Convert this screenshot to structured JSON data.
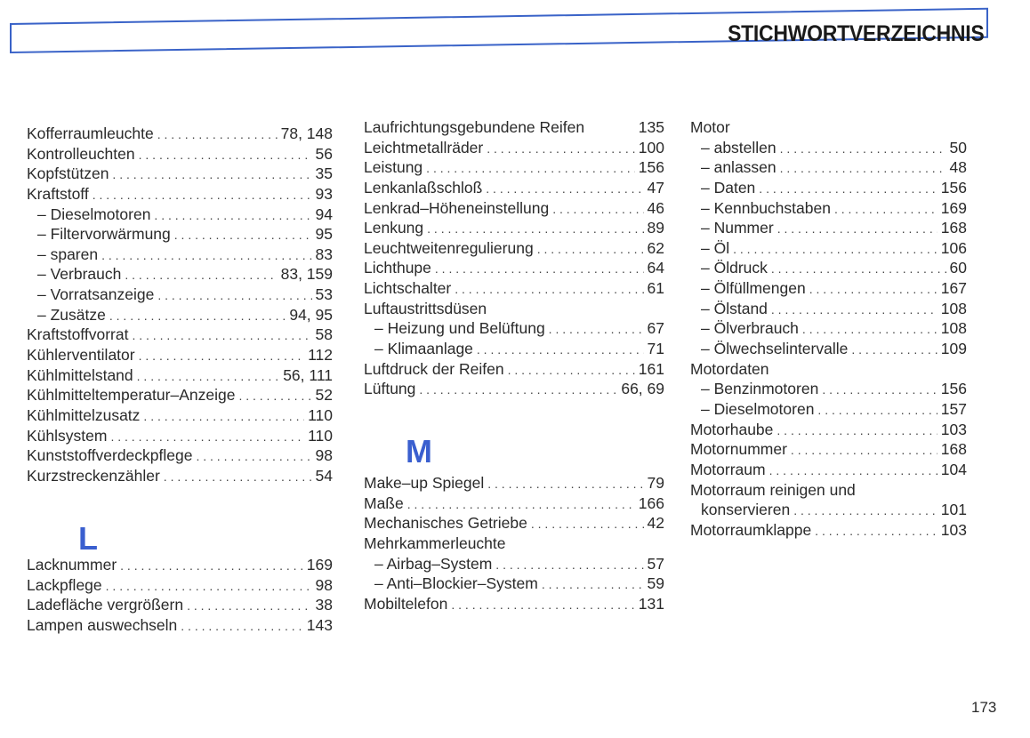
{
  "header": {
    "title": "STICHWORTVERZEICHNIS"
  },
  "accent_color": "#3a5fcf",
  "page_number": "173",
  "columns": [
    {
      "blocks": [
        {
          "entries": [
            {
              "text": "Kofferraumleuchte",
              "page": "78, 148"
            },
            {
              "text": "Kontrolleuchten",
              "page": "56"
            },
            {
              "text": "Kopfstützen",
              "page": "35"
            },
            {
              "text": "Kraftstoff",
              "page": "93"
            },
            {
              "text": "– Dieselmotoren",
              "page": "94",
              "sub": true
            },
            {
              "text": "– Filtervorwärmung",
              "page": "95",
              "sub": true
            },
            {
              "text": "– sparen",
              "page": "83",
              "sub": true
            },
            {
              "text": "– Verbrauch",
              "page": "83, 159",
              "sub": true
            },
            {
              "text": "– Vorratsanzeige",
              "page": "53",
              "sub": true
            },
            {
              "text": "– Zusätze",
              "page": "94, 95",
              "sub": true
            },
            {
              "text": "Kraftstoffvorrat",
              "page": "58"
            },
            {
              "text": "Kühlerventilator",
              "page": "112"
            },
            {
              "text": "Kühlmittelstand",
              "page": "56, 111"
            },
            {
              "text": "Kühlmitteltemperatur–Anzeige",
              "page": "52"
            },
            {
              "text": "Kühlmittelzusatz",
              "page": "110"
            },
            {
              "text": "Kühlsystem",
              "page": "110"
            },
            {
              "text": "Kunststoffverdeckpflege",
              "page": "98"
            },
            {
              "text": "Kurzstreckenzähler",
              "page": "54"
            }
          ]
        },
        {
          "letter": "L",
          "entries": [
            {
              "text": "Lacknummer",
              "page": "169"
            },
            {
              "text": "Lackpflege",
              "page": "98"
            },
            {
              "text": "Ladefläche vergrößern",
              "page": "38"
            },
            {
              "text": "Lampen auswechseln",
              "page": "143"
            }
          ]
        }
      ]
    },
    {
      "blocks": [
        {
          "entries": [
            {
              "text": "Laufrichtungsgebundene Reifen",
              "page": "135",
              "noleader": true
            },
            {
              "text": "Leichtmetallräder",
              "page": "100"
            },
            {
              "text": "Leistung",
              "page": "156"
            },
            {
              "text": "Lenkanlaßschloß",
              "page": "47"
            },
            {
              "text": "Lenkrad–Höheneinstellung",
              "page": "46"
            },
            {
              "text": "Lenkung",
              "page": "89"
            },
            {
              "text": "Leuchtweitenregulierung",
              "page": "62"
            },
            {
              "text": "Lichthupe",
              "page": "64"
            },
            {
              "text": "Lichtschalter",
              "page": "61"
            },
            {
              "text": "Luftaustrittsdüsen",
              "page": ""
            },
            {
              "text": "– Heizung und Belüftung",
              "page": "67",
              "sub": true
            },
            {
              "text": "– Klimaanlage",
              "page": "71",
              "sub": true
            },
            {
              "text": "Luftdruck der Reifen",
              "page": "161"
            },
            {
              "text": "Lüftung",
              "page": "66, 69"
            }
          ]
        },
        {
          "letter": "M",
          "entries": [
            {
              "text": "Make–up Spiegel",
              "page": "79"
            },
            {
              "text": "Maße",
              "page": "166"
            },
            {
              "text": "Mechanisches Getriebe",
              "page": "42"
            },
            {
              "text": "Mehrkammerleuchte",
              "page": ""
            },
            {
              "text": "– Airbag–System",
              "page": "57",
              "sub": true
            },
            {
              "text": "– Anti–Blockier–System",
              "page": "59",
              "sub": true
            },
            {
              "text": "Mobiltelefon",
              "page": "131"
            }
          ]
        }
      ]
    },
    {
      "blocks": [
        {
          "entries": [
            {
              "text": "Motor",
              "page": ""
            },
            {
              "text": "– abstellen",
              "page": "50",
              "sub": true
            },
            {
              "text": "– anlassen",
              "page": "48",
              "sub": true
            },
            {
              "text": "– Daten",
              "page": "156",
              "sub": true
            },
            {
              "text": "– Kennbuchstaben",
              "page": "169",
              "sub": true
            },
            {
              "text": "– Nummer",
              "page": "168",
              "sub": true
            },
            {
              "text": "– Öl",
              "page": "106",
              "sub": true
            },
            {
              "text": "– Öldruck",
              "page": "60",
              "sub": true
            },
            {
              "text": "– Ölfüllmengen",
              "page": "167",
              "sub": true
            },
            {
              "text": "– Ölstand",
              "page": "108",
              "sub": true
            },
            {
              "text": "– Ölverbrauch",
              "page": "108",
              "sub": true
            },
            {
              "text": "– Ölwechselintervalle",
              "page": "109",
              "sub": true
            },
            {
              "text": "Motordaten",
              "page": ""
            },
            {
              "text": "– Benzinmotoren",
              "page": "156",
              "sub": true
            },
            {
              "text": "– Dieselmotoren",
              "page": "157",
              "sub": true
            },
            {
              "text": "Motorhaube",
              "page": "103"
            },
            {
              "text": "Motornummer",
              "page": "168"
            },
            {
              "text": "Motorraum",
              "page": "104"
            },
            {
              "text": "Motorraum reinigen und",
              "page": ""
            },
            {
              "text": "konservieren",
              "page": "101",
              "sub": true
            },
            {
              "text": "Motorraumklappe",
              "page": "103"
            }
          ]
        }
      ]
    }
  ]
}
